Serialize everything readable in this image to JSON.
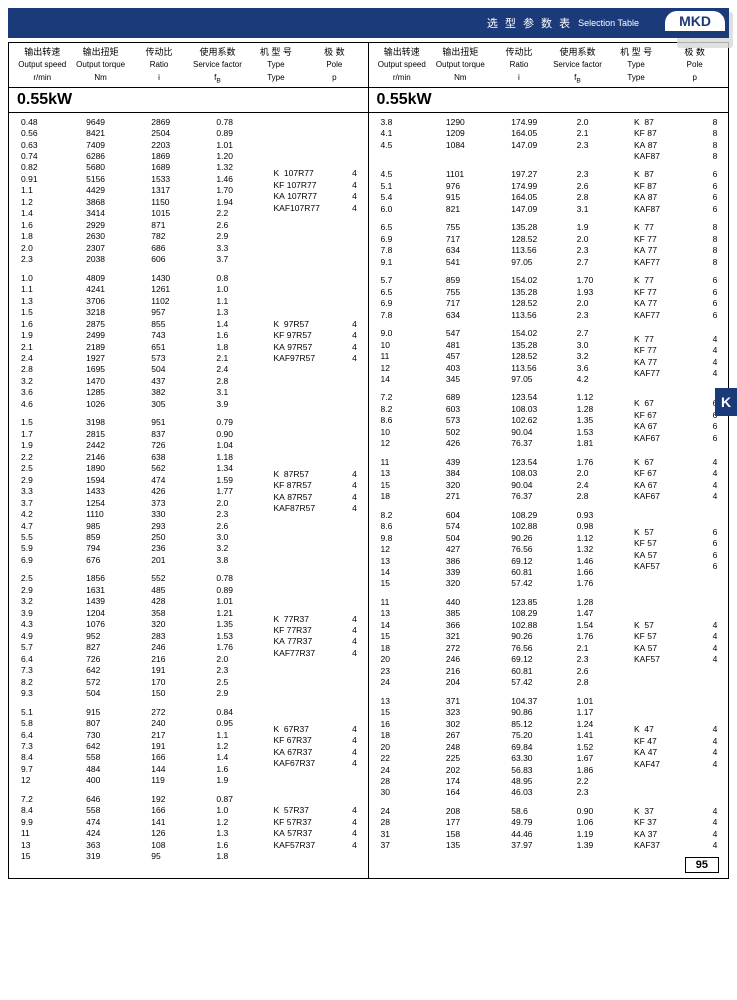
{
  "header": {
    "cn": "选 型 参 数 表",
    "en": "Selection Table",
    "badge": "MKD"
  },
  "sideTab": "K",
  "pageNum": "95",
  "kw": "0.55kW",
  "cols_cn": [
    "输出转速",
    "输出扭矩",
    "传动比",
    "使用系数",
    "机 型 号",
    "极 数"
  ],
  "cols_en": [
    "Output speed",
    "Output torque",
    "Ratio",
    "Service factor",
    "Type",
    "Pole"
  ],
  "cols_unit": [
    "r/min",
    "Nm",
    "i",
    "f<sub>B</sub>",
    "Type",
    "p"
  ],
  "left": [
    {
      "types": [
        "K  107R77",
        "KF 107R77",
        "KA 107R77",
        "KAF107R77"
      ],
      "pole": "4",
      "rows": [
        [
          "0.48",
          "9649",
          "2869",
          "0.78"
        ],
        [
          "0.56",
          "8421",
          "2504",
          "0.89"
        ],
        [
          "0.63",
          "7409",
          "2203",
          "1.01"
        ],
        [
          "0.74",
          "6286",
          "1869",
          "1.20"
        ],
        [
          "0.82",
          "5680",
          "1689",
          "1.32"
        ],
        [
          "0.91",
          "5156",
          "1533",
          "1.46"
        ],
        [
          "1.1",
          "4429",
          "1317",
          "1.70"
        ],
        [
          "1.2",
          "3868",
          "1150",
          "1.94"
        ],
        [
          "1.4",
          "3414",
          "1015",
          "2.2"
        ],
        [
          "1.6",
          "2929",
          "871",
          "2.6"
        ],
        [
          "1.8",
          "2630",
          "782",
          "2.9"
        ],
        [
          "2.0",
          "2307",
          "686",
          "3.3"
        ],
        [
          "2.3",
          "2038",
          "606",
          "3.7"
        ]
      ]
    },
    {
      "types": [
        "K  97R57",
        "KF 97R57",
        "KA 97R57",
        "KAF97R57"
      ],
      "pole": "4",
      "rows": [
        [
          "1.0",
          "4809",
          "1430",
          "0.8"
        ],
        [
          "1.1",
          "4241",
          "1261",
          "1.0"
        ],
        [
          "1.3",
          "3706",
          "1102",
          "1.1"
        ],
        [
          "1.5",
          "3218",
          "957",
          "1.3"
        ],
        [
          "1.6",
          "2875",
          "855",
          "1.4"
        ],
        [
          "1.9",
          "2499",
          "743",
          "1.6"
        ],
        [
          "2.1",
          "2189",
          "651",
          "1.8"
        ],
        [
          "2.4",
          "1927",
          "573",
          "2.1"
        ],
        [
          "2.8",
          "1695",
          "504",
          "2.4"
        ],
        [
          "3.2",
          "1470",
          "437",
          "2.8"
        ],
        [
          "3.6",
          "1285",
          "382",
          "3.1"
        ],
        [
          "4.6",
          "1026",
          "305",
          "3.9"
        ]
      ]
    },
    {
      "types": [
        "K  87R57",
        "KF 87R57",
        "KA 87R57",
        "KAF87R57"
      ],
      "pole": "4",
      "rows": [
        [
          "1.5",
          "3198",
          "951",
          "0.79"
        ],
        [
          "1.7",
          "2815",
          "837",
          "0.90"
        ],
        [
          "1.9",
          "2442",
          "726",
          "1.04"
        ],
        [
          "2.2",
          "2146",
          "638",
          "1.18"
        ],
        [
          "2.5",
          "1890",
          "562",
          "1.34"
        ],
        [
          "2.9",
          "1594",
          "474",
          "1.59"
        ],
        [
          "3.3",
          "1433",
          "426",
          "1.77"
        ],
        [
          "3.7",
          "1254",
          "373",
          "2.0"
        ],
        [
          "4.2",
          "1110",
          "330",
          "2.3"
        ],
        [
          "4.7",
          "985",
          "293",
          "2.6"
        ],
        [
          "5.5",
          "859",
          "250",
          "3.0"
        ],
        [
          "5.9",
          "794",
          "236",
          "3.2"
        ],
        [
          "6.9",
          "676",
          "201",
          "3.8"
        ]
      ]
    },
    {
      "types": [
        "K  77R37",
        "KF 77R37",
        "KA 77R37",
        "KAF77R37"
      ],
      "pole": "4",
      "rows": [
        [
          "2.5",
          "1856",
          "552",
          "0.78"
        ],
        [
          "2.9",
          "1631",
          "485",
          "0.89"
        ],
        [
          "3.2",
          "1439",
          "428",
          "1.01"
        ],
        [
          "3.9",
          "1204",
          "358",
          "1.21"
        ],
        [
          "4.3",
          "1076",
          "320",
          "1.35"
        ],
        [
          "4.9",
          "952",
          "283",
          "1.53"
        ],
        [
          "5.7",
          "827",
          "246",
          "1.76"
        ],
        [
          "6.4",
          "726",
          "216",
          "2.0"
        ],
        [
          "7.3",
          "642",
          "191",
          "2.3"
        ],
        [
          "8.2",
          "572",
          "170",
          "2.5"
        ],
        [
          "9.3",
          "504",
          "150",
          "2.9"
        ]
      ]
    },
    {
      "types": [
        "K  67R37",
        "KF 67R37",
        "KA 67R37",
        "KAF67R37"
      ],
      "pole": "4",
      "rows": [
        [
          "5.1",
          "915",
          "272",
          "0.84"
        ],
        [
          "5.8",
          "807",
          "240",
          "0.95"
        ],
        [
          "6.4",
          "730",
          "217",
          "1.1"
        ],
        [
          "7.3",
          "642",
          "191",
          "1.2"
        ],
        [
          "8.4",
          "558",
          "166",
          "1.4"
        ],
        [
          "9.7",
          "484",
          "144",
          "1.6"
        ],
        [
          "12",
          "400",
          "119",
          "1.9"
        ]
      ]
    },
    {
      "types": [
        "K  57R37",
        "KF 57R37",
        "KA 57R37",
        "KAF57R37"
      ],
      "pole": "4",
      "rows": [
        [
          "7.2",
          "646",
          "192",
          "0.87"
        ],
        [
          "8.4",
          "558",
          "166",
          "1.0"
        ],
        [
          "9.9",
          "474",
          "141",
          "1.2"
        ],
        [
          "11",
          "424",
          "126",
          "1.3"
        ],
        [
          "13",
          "363",
          "108",
          "1.6"
        ],
        [
          "15",
          "319",
          "95",
          "1.8"
        ]
      ]
    }
  ],
  "right": [
    {
      "types": [
        "K  87",
        "KF 87",
        "KA 87",
        "KAF87"
      ],
      "pole": "8",
      "rows": [
        [
          "3.8",
          "1290",
          "174.99",
          "2.0"
        ],
        [
          "4.1",
          "1209",
          "164.05",
          "2.1"
        ],
        [
          "4.5",
          "1084",
          "147.09",
          "2.3"
        ]
      ]
    },
    {
      "types": [
        "K  87",
        "KF 87",
        "KA 87",
        "KAF87"
      ],
      "pole": "6",
      "rows": [
        [
          "4.5",
          "1101",
          "197.27",
          "2.3"
        ],
        [
          "5.1",
          "976",
          "174.99",
          "2.6"
        ],
        [
          "5.4",
          "915",
          "164.05",
          "2.8"
        ],
        [
          "6.0",
          "821",
          "147.09",
          "3.1"
        ]
      ]
    },
    {
      "types": [
        "K  77",
        "KF 77",
        "KA 77",
        "KAF77"
      ],
      "pole": "8",
      "rows": [
        [
          "6.5",
          "755",
          "135.28",
          "1.9"
        ],
        [
          "6.9",
          "717",
          "128.52",
          "2.0"
        ],
        [
          "7.8",
          "634",
          "113.56",
          "2.3"
        ],
        [
          "9.1",
          "541",
          "97.05",
          "2.7"
        ]
      ]
    },
    {
      "types": [
        "K  77",
        "KF 77",
        "KA 77",
        "KAF77"
      ],
      "pole": "6",
      "rows": [
        [
          "5.7",
          "859",
          "154.02",
          "1.70"
        ],
        [
          "6.5",
          "755",
          "135.28",
          "1.93"
        ],
        [
          "6.9",
          "717",
          "128.52",
          "2.0"
        ],
        [
          "7.8",
          "634",
          "113.56",
          "2.3"
        ]
      ]
    },
    {
      "types": [
        "K  77",
        "KF 77",
        "KA 77",
        "KAF77"
      ],
      "pole": "4",
      "rows": [
        [
          "9.0",
          "547",
          "154.02",
          "2.7"
        ],
        [
          "10",
          "481",
          "135.28",
          "3.0"
        ],
        [
          "11",
          "457",
          "128.52",
          "3.2"
        ],
        [
          "12",
          "403",
          "113.56",
          "3.6"
        ],
        [
          "14",
          "345",
          "97.05",
          "4.2"
        ]
      ]
    },
    {
      "types": [
        "K  67",
        "KF 67",
        "KA 67",
        "KAF67"
      ],
      "pole": "6",
      "rows": [
        [
          "7.2",
          "689",
          "123.54",
          "1.12"
        ],
        [
          "8.2",
          "603",
          "108.03",
          "1.28"
        ],
        [
          "8.6",
          "573",
          "102.62",
          "1.35"
        ],
        [
          "10",
          "502",
          "90.04",
          "1.53"
        ],
        [
          "12",
          "426",
          "76.37",
          "1.81"
        ]
      ]
    },
    {
      "types": [
        "K  67",
        "KF 67",
        "KA 67",
        "KAF67"
      ],
      "pole": "4",
      "rows": [
        [
          "11",
          "439",
          "123.54",
          "1.76"
        ],
        [
          "13",
          "384",
          "108.03",
          "2.0"
        ],
        [
          "15",
          "320",
          "90.04",
          "2.4"
        ],
        [
          "18",
          "271",
          "76.37",
          "2.8"
        ]
      ]
    },
    {
      "types": [
        "K  57",
        "KF 57",
        "KA 57",
        "KAF57"
      ],
      "pole": "6",
      "rows": [
        [
          "8.2",
          "604",
          "108.29",
          "0.93"
        ],
        [
          "8.6",
          "574",
          "102.88",
          "0.98"
        ],
        [
          "9.8",
          "504",
          "90.26",
          "1.12"
        ],
        [
          "12",
          "427",
          "76.56",
          "1.32"
        ],
        [
          "13",
          "386",
          "69.12",
          "1.46"
        ],
        [
          "14",
          "339",
          "60.81",
          "1.66"
        ],
        [
          "15",
          "320",
          "57.42",
          "1.76"
        ]
      ]
    },
    {
      "types": [
        "K  57",
        "KF 57",
        "KA 57",
        "KAF57"
      ],
      "pole": "4",
      "rows": [
        [
          "11",
          "440",
          "123.85",
          "1.28"
        ],
        [
          "13",
          "385",
          "108.29",
          "1.47"
        ],
        [
          "14",
          "366",
          "102.88",
          "1.54"
        ],
        [
          "15",
          "321",
          "90.26",
          "1.76"
        ],
        [
          "18",
          "272",
          "76.56",
          "2.1"
        ],
        [
          "20",
          "246",
          "69.12",
          "2.3"
        ],
        [
          "23",
          "216",
          "60.81",
          "2.6"
        ],
        [
          "24",
          "204",
          "57.42",
          "2.8"
        ]
      ]
    },
    {
      "types": [
        "K  47",
        "KF 47",
        "KA 47",
        "KAF47"
      ],
      "pole": "4",
      "rows": [
        [
          "13",
          "371",
          "104.37",
          "1.01"
        ],
        [
          "15",
          "323",
          "90.86",
          "1.17"
        ],
        [
          "16",
          "302",
          "85.12",
          "1.24"
        ],
        [
          "18",
          "267",
          "75.20",
          "1.41"
        ],
        [
          "20",
          "248",
          "69.84",
          "1.52"
        ],
        [
          "22",
          "225",
          "63.30",
          "1.67"
        ],
        [
          "24",
          "202",
          "56.83",
          "1.86"
        ],
        [
          "28",
          "174",
          "48.95",
          "2.2"
        ],
        [
          "30",
          "164",
          "46.03",
          "2.3"
        ]
      ]
    },
    {
      "types": [
        "K  37",
        "KF 37",
        "KA 37",
        "KAF37"
      ],
      "pole": "4",
      "rows": [
        [
          "24",
          "208",
          "58.6",
          "0.90"
        ],
        [
          "28",
          "177",
          "49.79",
          "1.06"
        ],
        [
          "31",
          "158",
          "44.46",
          "1.19"
        ],
        [
          "37",
          "135",
          "37.97",
          "1.39"
        ]
      ]
    }
  ]
}
